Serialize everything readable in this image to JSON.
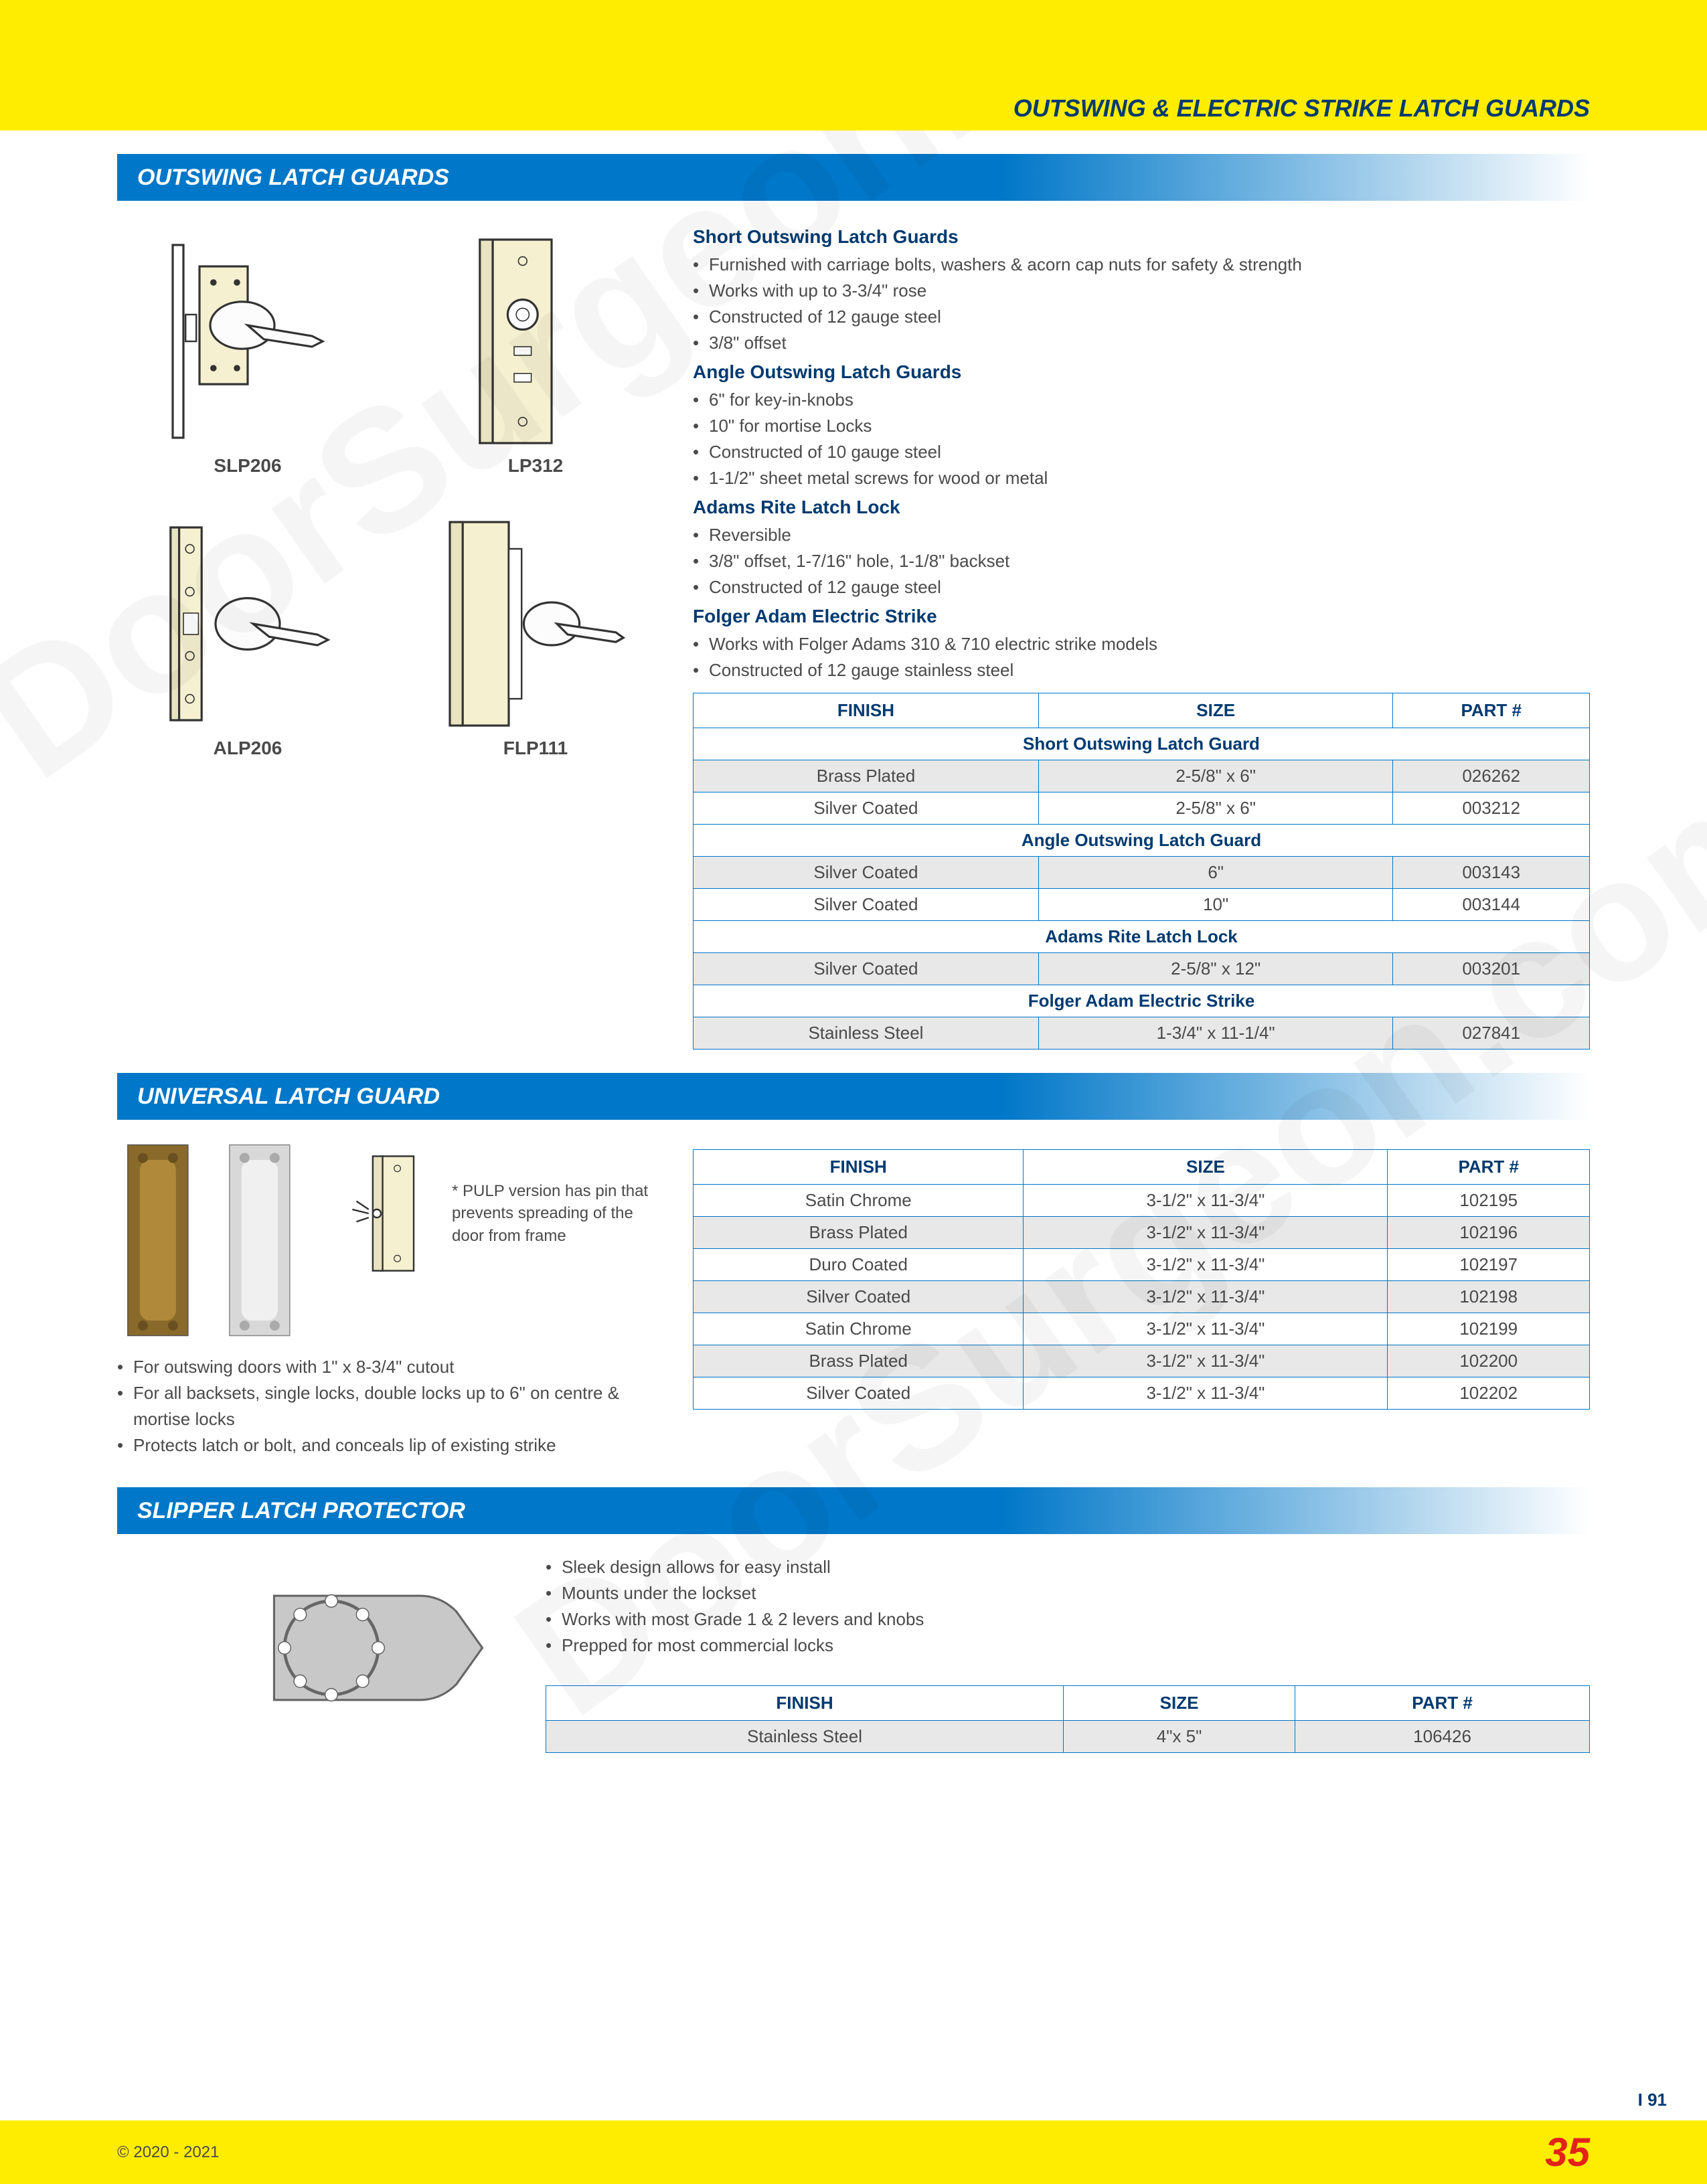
{
  "page_title": "OUTSWING & ELECTRIC STRIKE LATCH GUARDS",
  "colors": {
    "yellow": "#ffed00",
    "blue_header": "#0077c8",
    "navy": "#003a70",
    "text_gray": "#4a4a4a",
    "red": "#e2231a",
    "table_border": "#0077c8",
    "shade": "#e8e8e8"
  },
  "section1": {
    "title": "OUTSWING LATCH GUARDS",
    "diagrams": [
      {
        "label": "SLP206"
      },
      {
        "label": "LP312"
      },
      {
        "label": "ALP206"
      },
      {
        "label": "FLP111"
      }
    ],
    "spec_groups": [
      {
        "title": "Short Outswing Latch Guards",
        "bullets": [
          "Furnished with carriage bolts, washers & acorn cap nuts for safety & strength",
          "Works with up to 3-3/4\" rose",
          "Constructed of 12 gauge steel",
          "3/8\" offset"
        ]
      },
      {
        "title": "Angle Outswing Latch Guards",
        "bullets": [
          "6\" for key-in-knobs",
          "10\" for mortise Locks",
          "Constructed of 10 gauge steel",
          "1-1/2\" sheet metal screws for wood or metal"
        ]
      },
      {
        "title": "Adams Rite Latch Lock",
        "bullets": [
          "Reversible",
          "3/8\" offset, 1-7/16\" hole, 1-1/8\" backset",
          "Constructed of 12 gauge steel"
        ]
      },
      {
        "title": "Folger Adam Electric Strike",
        "bullets": [
          "Works with Folger Adams 310 & 710 electric strike models",
          "Constructed of 12 gauge stainless steel"
        ]
      }
    ],
    "table": {
      "columns": [
        "FINISH",
        "SIZE",
        "PART #"
      ],
      "groups": [
        {
          "header": "Short Outswing Latch Guard",
          "rows": [
            {
              "cells": [
                "Brass Plated",
                "2-5/8\" x 6\"",
                "026262"
              ],
              "shade": true
            },
            {
              "cells": [
                "Silver Coated",
                "2-5/8\" x 6\"",
                "003212"
              ],
              "shade": false
            }
          ]
        },
        {
          "header": "Angle Outswing Latch Guard",
          "rows": [
            {
              "cells": [
                "Silver Coated",
                "6\"",
                "003143"
              ],
              "shade": true
            },
            {
              "cells": [
                "Silver Coated",
                "10\"",
                "003144"
              ],
              "shade": false
            }
          ]
        },
        {
          "header": "Adams Rite Latch Lock",
          "rows": [
            {
              "cells": [
                "Silver Coated",
                "2-5/8\" x 12\"",
                "003201"
              ],
              "shade": true
            }
          ]
        },
        {
          "header": "Folger Adam Electric Strike",
          "rows": [
            {
              "cells": [
                "Stainless Steel",
                "1-3/4\" x 11-1/4\"",
                "027841"
              ],
              "shade": true
            }
          ]
        }
      ]
    }
  },
  "section2": {
    "title": "UNIVERSAL LATCH GUARD",
    "pulp_note": "* PULP version has pin that prevents spreading of the door from frame",
    "bullets": [
      "For outswing doors with 1\" x 8-3/4\" cutout",
      "For all backsets, single locks, double locks up to 6\" on centre & mortise locks",
      "Protects latch or bolt, and conceals lip of existing strike"
    ],
    "table": {
      "columns": [
        "FINISH",
        "SIZE",
        "PART #"
      ],
      "rows": [
        {
          "cells": [
            "Satin Chrome",
            "3-1/2\" x 11-3/4\"",
            "102195"
          ],
          "shade": false
        },
        {
          "cells": [
            "Brass Plated",
            "3-1/2\" x 11-3/4\"",
            "102196"
          ],
          "shade": true
        },
        {
          "cells": [
            "Duro Coated",
            "3-1/2\" x 11-3/4\"",
            "102197"
          ],
          "shade": false
        },
        {
          "cells": [
            "Silver Coated",
            "3-1/2\" x 11-3/4\"",
            "102198"
          ],
          "shade": true
        },
        {
          "cells": [
            "Satin Chrome",
            "3-1/2\" x 11-3/4\"",
            "102199"
          ],
          "shade": false
        },
        {
          "cells": [
            "Brass Plated",
            "3-1/2\" x 11-3/4\"",
            "102200"
          ],
          "shade": true
        },
        {
          "cells": [
            "Silver Coated",
            "3-1/2\" x 11-3/4\"",
            "102202"
          ],
          "shade": false
        }
      ]
    }
  },
  "section3": {
    "title": "SLIPPER LATCH PROTECTOR",
    "bullets": [
      "Sleek design allows for easy install",
      "Mounts under the lockset",
      "Works with most Grade 1 & 2 levers and knobs",
      "Prepped for most commercial locks"
    ],
    "table": {
      "columns": [
        "FINISH",
        "SIZE",
        "PART #"
      ],
      "rows": [
        {
          "cells": [
            "Stainless Steel",
            "4\"x 5\"",
            "106426"
          ],
          "shade": true
        }
      ]
    }
  },
  "footer": {
    "copyright": "© 2020 - 2021",
    "page_number": "35",
    "side_ref": "I 91"
  }
}
